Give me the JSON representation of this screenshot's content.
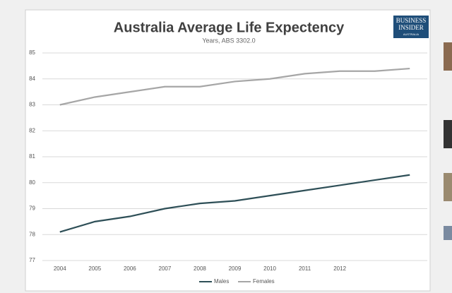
{
  "chart_data": {
    "type": "line",
    "title": "Australia Average Life Expectency",
    "subtitle": "Years, ABS 3302.0",
    "categories": [
      "2004",
      "2005",
      "2006",
      "2007",
      "2008",
      "2009",
      "2010",
      "2011",
      "2012",
      null,
      null
    ],
    "series": [
      {
        "name": "Males",
        "color": "#2e4f57",
        "values": [
          78.1,
          78.5,
          78.7,
          79.0,
          79.2,
          79.3,
          79.5,
          79.7,
          79.9,
          80.1,
          80.3
        ]
      },
      {
        "name": "Females",
        "color": "#a6a6a6",
        "values": [
          83.0,
          83.3,
          83.5,
          83.7,
          83.7,
          83.9,
          84.0,
          84.2,
          84.3,
          84.3,
          84.4
        ]
      }
    ],
    "ylim": [
      77,
      85
    ],
    "yticks": [
      77,
      78,
      79,
      80,
      81,
      82,
      83,
      84,
      85
    ],
    "grid": true,
    "legend": "bottom"
  },
  "logo": {
    "line1": "BUSINESS",
    "line2": "INSIDER",
    "line3": "AUSTRALIA"
  }
}
